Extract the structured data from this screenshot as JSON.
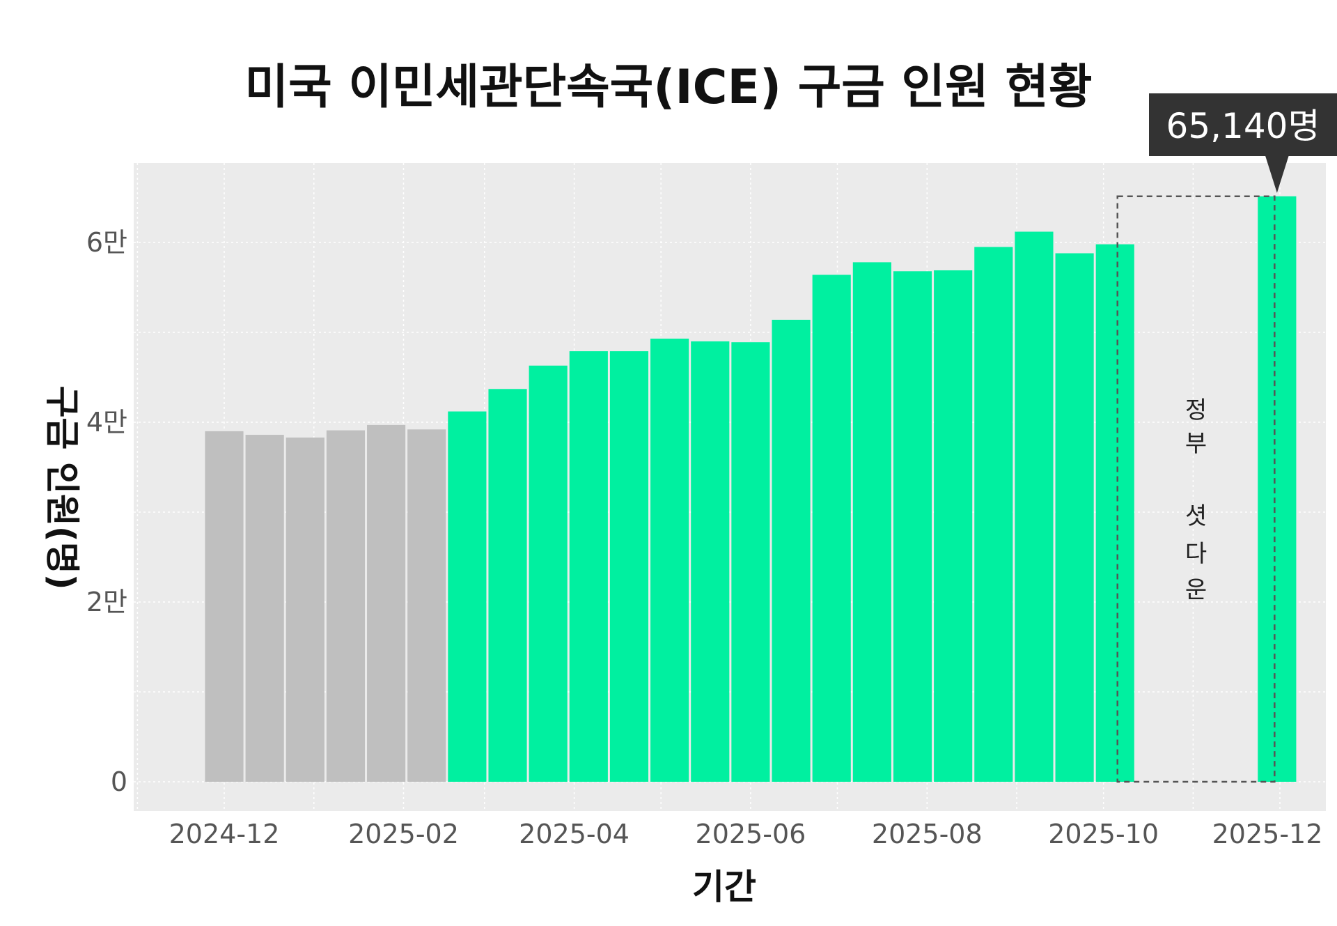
{
  "chart_data": {
    "type": "bar",
    "title": "미국 이민세관단속국(ICE) 구금 인원 현황",
    "xlabel": "기간",
    "ylabel": "구금 인원(명)",
    "ylim": [
      0,
      66000
    ],
    "grid": true,
    "y_ticks": [
      {
        "value": 0,
        "label": "0"
      },
      {
        "value": 20000,
        "label": "2만"
      },
      {
        "value": 40000,
        "label": "4만"
      },
      {
        "value": 60000,
        "label": "6만"
      }
    ],
    "x_ticks": [
      {
        "x": "2024-12-01",
        "label": "2024-12"
      },
      {
        "x": "2025-02-01",
        "label": "2025-02"
      },
      {
        "x": "2025-04-01",
        "label": "2025-04"
      },
      {
        "x": "2025-06-01",
        "label": "2025-06"
      },
      {
        "x": "2025-08-01",
        "label": "2025-08"
      },
      {
        "x": "2025-10-01",
        "label": "2025-10"
      },
      {
        "x": "2025-12-01",
        "label": "2025-12"
      }
    ],
    "bars": [
      {
        "date": "2024-12-01",
        "value": 39000,
        "color": "#bfbfbf"
      },
      {
        "date": "2024-12-15",
        "value": 38600,
        "color": "#bfbfbf"
      },
      {
        "date": "2024-12-29",
        "value": 38300,
        "color": "#bfbfbf"
      },
      {
        "date": "2025-01-12",
        "value": 39100,
        "color": "#bfbfbf"
      },
      {
        "date": "2025-01-26",
        "value": 39700,
        "color": "#bfbfbf"
      },
      {
        "date": "2025-02-09",
        "value": 39200,
        "color": "#bfbfbf"
      },
      {
        "date": "2025-02-23",
        "value": 41200,
        "color": "#00f0a0"
      },
      {
        "date": "2025-03-09",
        "value": 43700,
        "color": "#00f0a0"
      },
      {
        "date": "2025-03-23",
        "value": 46300,
        "color": "#00f0a0"
      },
      {
        "date": "2025-04-06",
        "value": 47900,
        "color": "#00f0a0"
      },
      {
        "date": "2025-04-20",
        "value": 47900,
        "color": "#00f0a0"
      },
      {
        "date": "2025-05-04",
        "value": 49300,
        "color": "#00f0a0"
      },
      {
        "date": "2025-05-18",
        "value": 49000,
        "color": "#00f0a0"
      },
      {
        "date": "2025-06-01",
        "value": 48900,
        "color": "#00f0a0"
      },
      {
        "date": "2025-06-15",
        "value": 51400,
        "color": "#00f0a0"
      },
      {
        "date": "2025-06-29",
        "value": 56400,
        "color": "#00f0a0"
      },
      {
        "date": "2025-07-13",
        "value": 57800,
        "color": "#00f0a0"
      },
      {
        "date": "2025-07-27",
        "value": 56800,
        "color": "#00f0a0"
      },
      {
        "date": "2025-08-10",
        "value": 56900,
        "color": "#00f0a0"
      },
      {
        "date": "2025-08-24",
        "value": 59500,
        "color": "#00f0a0"
      },
      {
        "date": "2025-09-07",
        "value": 61200,
        "color": "#00f0a0"
      },
      {
        "date": "2025-09-21",
        "value": 58800,
        "color": "#00f0a0"
      },
      {
        "date": "2025-10-05",
        "value": 59800,
        "color": "#00f0a0"
      },
      {
        "date": "2025-11-30",
        "value": 65140,
        "color": "#00f0a0"
      }
    ],
    "callout": {
      "date": "2025-11-30",
      "value": 65140,
      "label": "65,140명"
    },
    "shutdown": {
      "start": "2025-10-12",
      "end": "2025-11-23",
      "value": 65140,
      "label": [
        "정",
        "부",
        "셧",
        "다",
        "운"
      ]
    },
    "colors": {
      "panel": "#ebebeb",
      "grid": "#ffffff",
      "callout": "#333333"
    }
  }
}
